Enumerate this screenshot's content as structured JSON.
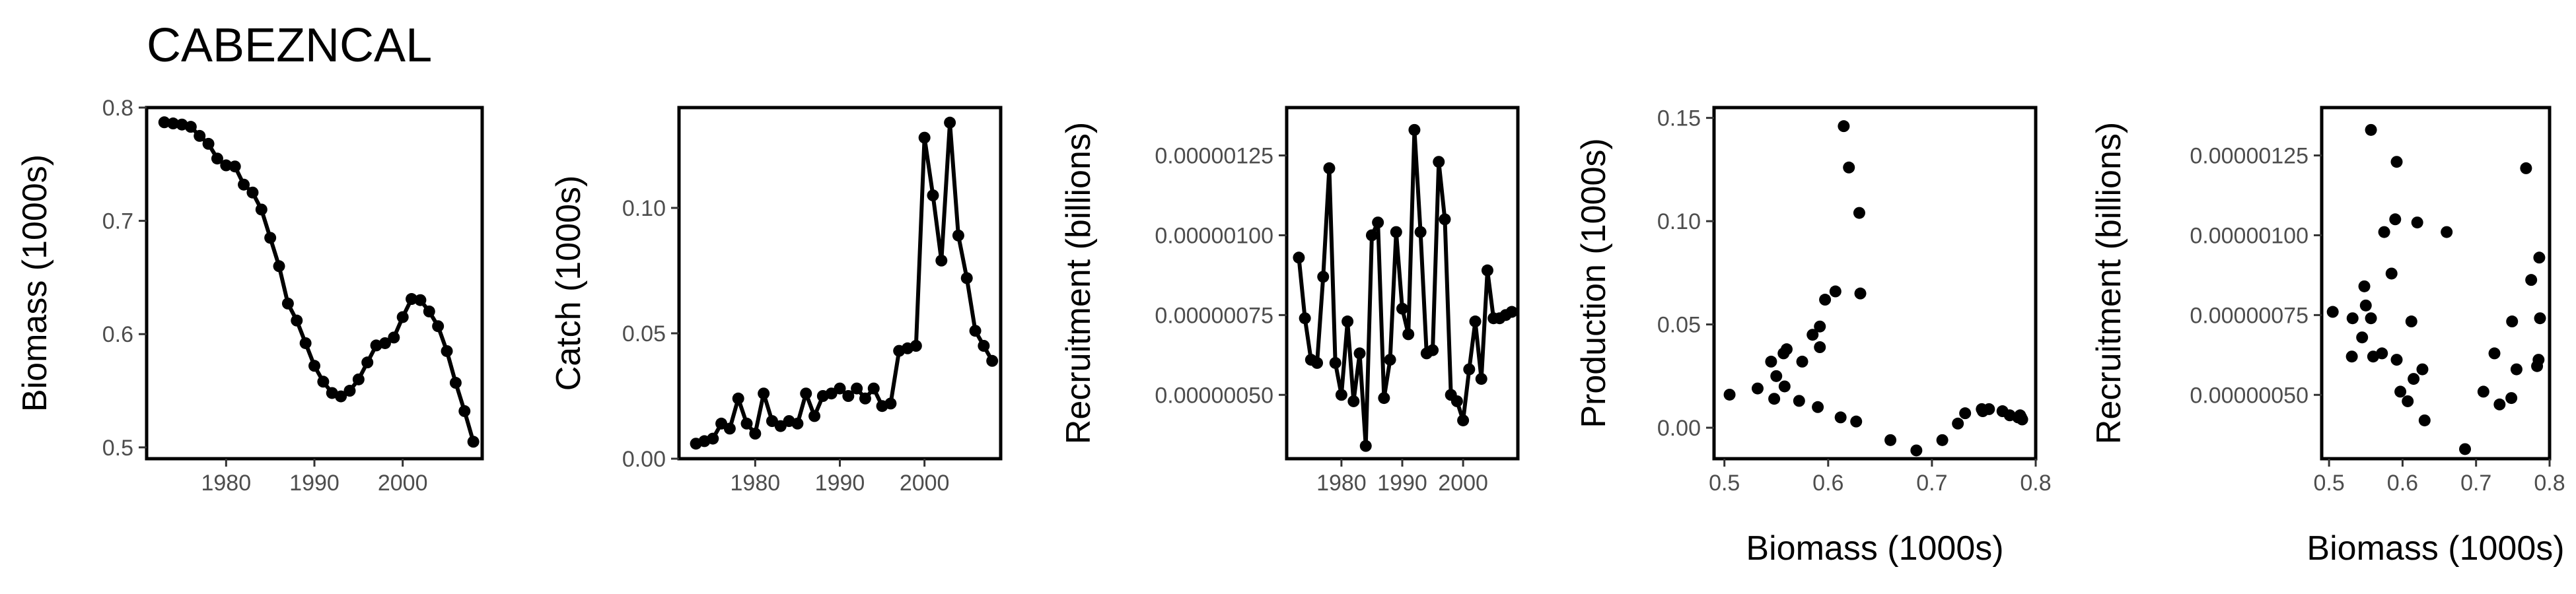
{
  "title": "CABEZNCAL",
  "chart_data": [
    {
      "id": "biomass-panel",
      "type": "line",
      "xlabel": "",
      "ylabel": "Biomass (1000s)",
      "xlim": [
        1971,
        2009
      ],
      "ylim": [
        0.49,
        0.8
      ],
      "xticks": [
        1980,
        1990,
        2000
      ],
      "xtick_labels": [
        "1980",
        "1990",
        "2000"
      ],
      "yticks": [
        0.5,
        0.6,
        0.7,
        0.8
      ],
      "ytick_labels": [
        "0.5",
        "0.6",
        "0.7",
        "0.8"
      ],
      "series": [
        {
          "x": [
            1973,
            1974,
            1975,
            1976,
            1977,
            1978,
            1979,
            1980,
            1981,
            1982,
            1983,
            1984,
            1985,
            1986,
            1987,
            1988,
            1989,
            1990,
            1991,
            1992,
            1993,
            1994,
            1995,
            1996,
            1997,
            1998,
            1999,
            2000,
            2001,
            2002,
            2003,
            2004,
            2005,
            2006,
            2007,
            2008
          ],
          "y": [
            0.787,
            0.786,
            0.785,
            0.783,
            0.775,
            0.768,
            0.755,
            0.749,
            0.748,
            0.732,
            0.725,
            0.71,
            0.685,
            0.66,
            0.627,
            0.612,
            0.592,
            0.572,
            0.558,
            0.548,
            0.545,
            0.55,
            0.56,
            0.575,
            0.59,
            0.592,
            0.597,
            0.615,
            0.631,
            0.63,
            0.62,
            0.607,
            0.585,
            0.557,
            0.532,
            0.505
          ]
        }
      ]
    },
    {
      "id": "catch-panel",
      "type": "line",
      "xlabel": "",
      "ylabel": "Catch (1000s)",
      "xlim": [
        1971,
        2009
      ],
      "ylim": [
        0,
        0.14
      ],
      "xticks": [
        1980,
        1990,
        2000
      ],
      "xtick_labels": [
        "1980",
        "1990",
        "2000"
      ],
      "yticks": [
        0,
        0.05,
        0.1
      ],
      "ytick_labels": [
        "0.00",
        "0.05",
        "0.10"
      ],
      "series": [
        {
          "x": [
            1973,
            1974,
            1975,
            1976,
            1977,
            1978,
            1979,
            1980,
            1981,
            1982,
            1983,
            1984,
            1985,
            1986,
            1987,
            1988,
            1989,
            1990,
            1991,
            1992,
            1993,
            1994,
            1995,
            1996,
            1997,
            1998,
            1999,
            2000,
            2001,
            2002,
            2003,
            2004,
            2005,
            2006,
            2007,
            2008
          ],
          "y": [
            0.006,
            0.007,
            0.008,
            0.014,
            0.012,
            0.024,
            0.014,
            0.01,
            0.026,
            0.015,
            0.013,
            0.015,
            0.014,
            0.026,
            0.017,
            0.025,
            0.026,
            0.028,
            0.025,
            0.028,
            0.024,
            0.028,
            0.021,
            0.022,
            0.043,
            0.044,
            0.045,
            0.128,
            0.105,
            0.079,
            0.134,
            0.089,
            0.072,
            0.051,
            0.045,
            0.039
          ]
        }
      ]
    },
    {
      "id": "recruitment-panel",
      "type": "line",
      "xlabel": "",
      "ylabel": "Recruitment (billions)",
      "xlim": [
        1971,
        2009
      ],
      "ylim": [
        3e-07,
        1.4e-06
      ],
      "xticks": [
        1980,
        1990,
        2000
      ],
      "xtick_labels": [
        "1980",
        "1990",
        "2000"
      ],
      "yticks": [
        5e-07,
        7.5e-07,
        1e-06,
        1.25e-06
      ],
      "ytick_labels": [
        "0.00000050",
        "0.00000075",
        "0.00000100",
        "0.00000125"
      ],
      "series": [
        {
          "x": [
            1973,
            1974,
            1975,
            1976,
            1977,
            1978,
            1979,
            1980,
            1981,
            1982,
            1983,
            1984,
            1985,
            1986,
            1987,
            1988,
            1989,
            1990,
            1991,
            1992,
            1993,
            1994,
            1995,
            1996,
            1997,
            1998,
            1999,
            2000,
            2001,
            2002,
            2003,
            2004,
            2005,
            2006,
            2007,
            2008
          ],
          "y": [
            9.3e-07,
            7.4e-07,
            6.1e-07,
            6e-07,
            8.7e-07,
            1.21e-06,
            6e-07,
            5e-07,
            7.3e-07,
            4.8e-07,
            6.3e-07,
            3.4e-07,
            1e-06,
            1.04e-06,
            4.9e-07,
            6.1e-07,
            1.01e-06,
            7.7e-07,
            6.9e-07,
            1.33e-06,
            1.01e-06,
            6.3e-07,
            6.4e-07,
            1.23e-06,
            1.05e-06,
            5e-07,
            4.8e-07,
            4.2e-07,
            5.8e-07,
            7.3e-07,
            5.5e-07,
            8.9e-07,
            7.4e-07,
            7.4e-07,
            7.5e-07,
            7.6e-07
          ]
        }
      ]
    },
    {
      "id": "production-panel",
      "type": "scatter",
      "xlabel": "Biomass (1000s)",
      "ylabel": "Production (1000s)",
      "xlim": [
        0.49,
        0.8
      ],
      "ylim": [
        -0.015,
        0.155
      ],
      "xticks": [
        0.5,
        0.6,
        0.7,
        0.8
      ],
      "xtick_labels": [
        "0.5",
        "0.6",
        "0.7",
        "0.8"
      ],
      "yticks": [
        0,
        0.05,
        0.1,
        0.15
      ],
      "ytick_labels": [
        "0.00",
        "0.05",
        "0.10",
        "0.15"
      ],
      "series": [
        {
          "x": [
            0.505,
            0.532,
            0.545,
            0.548,
            0.55,
            0.557,
            0.558,
            0.56,
            0.572,
            0.575,
            0.585,
            0.59,
            0.592,
            0.592,
            0.597,
            0.607,
            0.612,
            0.615,
            0.62,
            0.627,
            0.63,
            0.631,
            0.66,
            0.685,
            0.71,
            0.725,
            0.732,
            0.748,
            0.749,
            0.755,
            0.768,
            0.775,
            0.783,
            0.785,
            0.786,
            0.787
          ],
          "y": [
            0.016,
            0.019,
            0.032,
            0.014,
            0.025,
            0.036,
            0.02,
            0.038,
            0.013,
            0.032,
            0.045,
            0.01,
            0.039,
            0.049,
            0.062,
            0.066,
            0.005,
            0.146,
            0.126,
            0.003,
            0.104,
            0.065,
            -0.006,
            -0.011,
            -0.006,
            0.002,
            0.007,
            0.009,
            0.008,
            0.009,
            0.008,
            0.006,
            0.005,
            0.006,
            0.005,
            0.004
          ]
        }
      ]
    },
    {
      "id": "stock-recruitment-panel",
      "type": "scatter",
      "xlabel": "Biomass (1000s)",
      "ylabel": "Recruitment (billions)",
      "xlim": [
        0.49,
        0.8
      ],
      "ylim": [
        3e-07,
        1.4e-06
      ],
      "xticks": [
        0.5,
        0.6,
        0.7,
        0.8
      ],
      "xtick_labels": [
        "0.5",
        "0.6",
        "0.7",
        "0.8"
      ],
      "yticks": [
        5e-07,
        7.5e-07,
        1e-06,
        1.25e-06
      ],
      "ytick_labels": [
        "0.00000050",
        "0.00000075",
        "0.00000100",
        "0.00000125"
      ],
      "series": [
        {
          "x": [
            0.505,
            0.532,
            0.545,
            0.548,
            0.55,
            0.557,
            0.56,
            0.572,
            0.575,
            0.585,
            0.59,
            0.592,
            0.597,
            0.607,
            0.612,
            0.615,
            0.62,
            0.627,
            0.63,
            0.66,
            0.685,
            0.71,
            0.725,
            0.732,
            0.748,
            0.749,
            0.755,
            0.768,
            0.775,
            0.783,
            0.785,
            0.786,
            0.787,
            0.557,
            0.592,
            0.531
          ],
          "y": [
            7.6e-07,
            7.4e-07,
            6.8e-07,
            8.4e-07,
            7.8e-07,
            7.4e-07,
            6.2e-07,
            6.3e-07,
            1.01e-06,
            8.8e-07,
            1.05e-06,
            6.1e-07,
            5.1e-07,
            4.8e-07,
            7.3e-07,
            5.5e-07,
            1.04e-06,
            5.8e-07,
            4.2e-07,
            1.01e-06,
            3.3e-07,
            5.1e-07,
            6.3e-07,
            4.7e-07,
            4.9e-07,
            7.3e-07,
            5.8e-07,
            1.21e-06,
            8.6e-07,
            5.9e-07,
            6.1e-07,
            9.3e-07,
            7.4e-07,
            1.33e-06,
            1.23e-06,
            6.2e-07
          ]
        }
      ]
    }
  ]
}
